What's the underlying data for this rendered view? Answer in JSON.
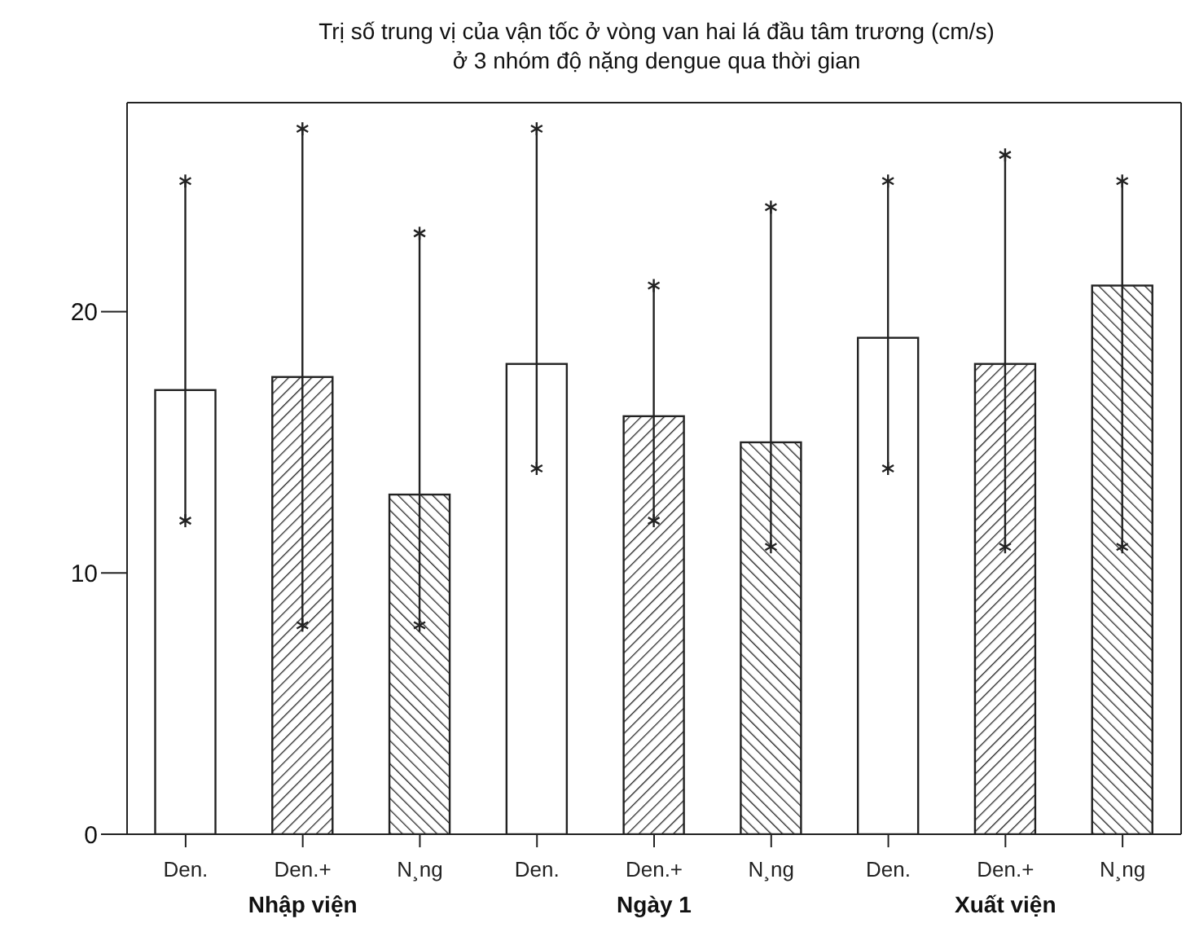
{
  "chart_data": {
    "type": "bar",
    "title": "Trị số trung vị của vận tốc ở vòng van hai lá đầu tâm trương (cm/s)\nở 3 nhóm độ nặng dengue qua thời gian",
    "categories": [
      "Den.",
      "Den.+",
      "N¸ng",
      "Den.",
      "Den.+",
      "N¸ng",
      "Den.",
      "Den.+",
      "N¸ng"
    ],
    "values": [
      17,
      17.5,
      13,
      18,
      16,
      15,
      19,
      18,
      21
    ],
    "errors": [
      [
        12,
        25
      ],
      [
        8,
        27
      ],
      [
        8,
        23
      ],
      [
        14,
        27
      ],
      [
        12,
        21
      ],
      [
        11,
        24
      ],
      [
        14,
        25
      ],
      [
        11,
        26
      ],
      [
        11,
        25
      ]
    ],
    "colors": [
      "#ffffff",
      "#222222",
      "#222222",
      "#ffffff",
      "#222222",
      "#222222",
      "#ffffff",
      "#222222",
      "#222222"
    ],
    "annotations": [
      "Nhập viện",
      "Ngày 1",
      "Xuất viện"
    ],
    "ylim": [
      0,
      28
    ],
    "yticks": [
      0,
      10,
      20
    ],
    "grid": false,
    "legend": false
  }
}
